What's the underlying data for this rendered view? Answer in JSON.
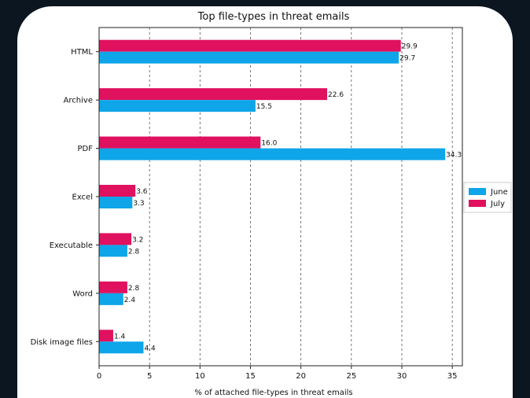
{
  "chart_data": {
    "type": "bar",
    "orientation": "horizontal",
    "title": "Top file-types in threat emails",
    "xlabel": "% of attached file-types in threat emails",
    "ylabel": "",
    "xlim": [
      0,
      36
    ],
    "xticks": [
      0,
      5,
      10,
      15,
      20,
      25,
      30,
      35
    ],
    "grid": "vertical dashed",
    "legend_position": "right",
    "categories": [
      "HTML",
      "Archive",
      "PDF",
      "Excel",
      "Executable",
      "Word",
      "Disk image files"
    ],
    "series": [
      {
        "name": "June",
        "color": "#0ea5e9",
        "values": [
          29.7,
          15.5,
          34.3,
          3.3,
          2.8,
          2.4,
          4.4
        ],
        "labels": [
          "29.7",
          "15.5",
          "34.3",
          "3.3",
          "2.8",
          "2.4",
          "4.4"
        ]
      },
      {
        "name": "July",
        "color": "#e0115f",
        "values": [
          29.9,
          22.6,
          16.0,
          3.6,
          3.2,
          2.8,
          1.4
        ],
        "labels": [
          "29.9",
          "22.6",
          "16.0",
          "3.6",
          "3.2",
          "2.8",
          "1.4"
        ]
      }
    ]
  }
}
